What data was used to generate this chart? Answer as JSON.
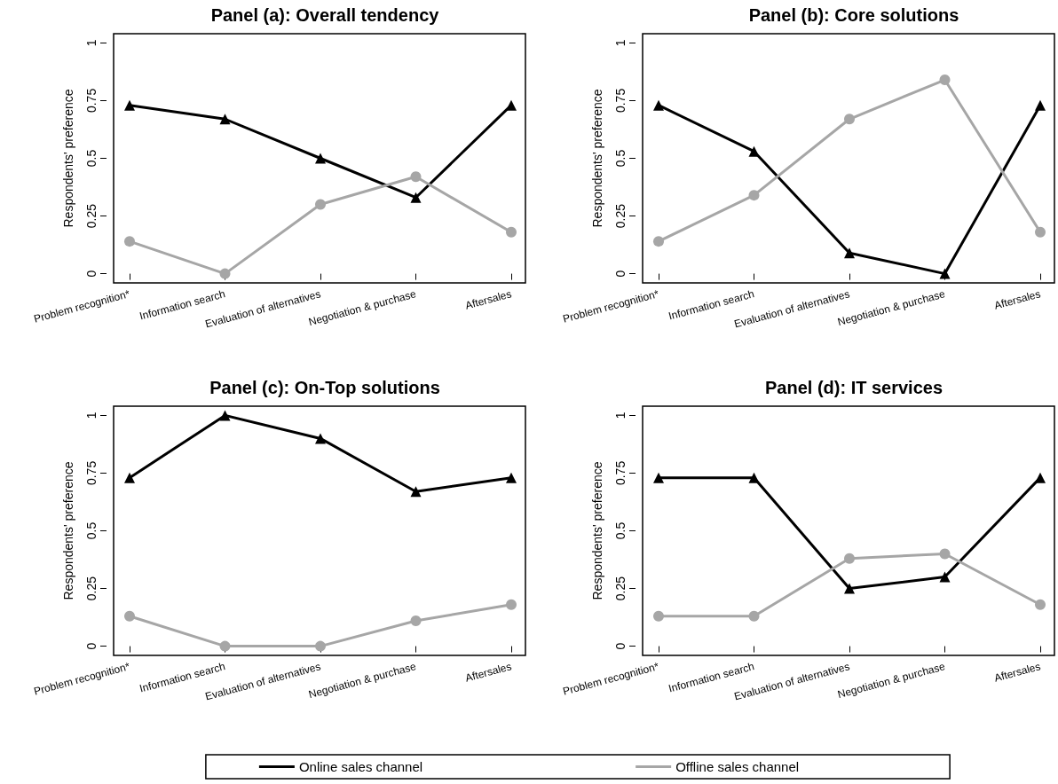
{
  "chart_data": [
    {
      "type": "line",
      "title": "Panel (a): Overall tendency",
      "ylabel": "Respondents' preference",
      "categories": [
        "Problem recognition*",
        "Information search",
        "Evaluation of alternatives",
        "Negotiation & purchase",
        "Aftersales"
      ],
      "ylim": [
        -0.04,
        1.04
      ],
      "yticks": [
        0,
        0.25,
        0.5,
        0.75,
        1
      ],
      "legend": "bottom",
      "series": [
        {
          "name": "Online sales channel",
          "color": "#000000",
          "marker": "triangle",
          "values": [
            0.73,
            0.67,
            0.5,
            0.33,
            0.73
          ]
        },
        {
          "name": "Offline sales channel",
          "color": "#a6a6a6",
          "marker": "circle",
          "values": [
            0.14,
            0,
            0.3,
            0.42,
            0.18
          ]
        }
      ]
    },
    {
      "type": "line",
      "title": "Panel (b): Core solutions",
      "ylabel": "Respondents' preference",
      "categories": [
        "Problem recognition*",
        "Information search",
        "Evaluation of alternatives",
        "Negotiation & purchase",
        "Aftersales"
      ],
      "ylim": [
        -0.04,
        1.04
      ],
      "yticks": [
        0,
        0.25,
        0.5,
        0.75,
        1
      ],
      "series": [
        {
          "color": "#000000",
          "marker": "triangle",
          "values": [
            0.73,
            0.53,
            0.09,
            0,
            0.73
          ]
        },
        {
          "color": "#a6a6a6",
          "marker": "circle",
          "values": [
            0.14,
            0.34,
            0.67,
            0.84,
            0.18
          ]
        }
      ]
    },
    {
      "type": "line",
      "title": "Panel (c): On-Top solutions",
      "ylabel": "Respondents' preference",
      "categories": [
        "Problem recognition*",
        "Information search",
        "Evaluation of alternatives",
        "Negotiation & purchase",
        "Aftersales"
      ],
      "ylim": [
        -0.04,
        1.04
      ],
      "yticks": [
        0,
        0.25,
        0.5,
        0.75,
        1
      ],
      "series": [
        {
          "color": "#000000",
          "marker": "triangle",
          "values": [
            0.73,
            1,
            0.9,
            0.67,
            0.73
          ]
        },
        {
          "color": "#a6a6a6",
          "marker": "circle",
          "values": [
            0.13,
            0,
            0,
            0.11,
            0.18
          ]
        }
      ]
    },
    {
      "type": "line",
      "title": "Panel (d): IT services",
      "ylabel": "Respondents' preference",
      "categories": [
        "Problem recognition*",
        "Information search",
        "Evaluation of alternatives",
        "Negotiation & purchase",
        "Aftersales"
      ],
      "ylim": [
        -0.04,
        1.04
      ],
      "yticks": [
        0,
        0.25,
        0.5,
        0.75,
        1
      ],
      "series": [
        {
          "color": "#000000",
          "marker": "triangle",
          "values": [
            0.73,
            0.73,
            0.25,
            0.3,
            0.73
          ]
        },
        {
          "color": "#a6a6a6",
          "marker": "circle",
          "values": [
            0.13,
            0.13,
            0.38,
            0.4,
            0.18
          ]
        }
      ]
    }
  ]
}
